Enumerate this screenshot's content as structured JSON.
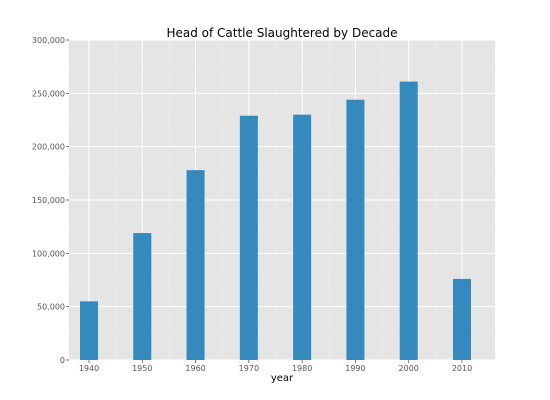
{
  "chart_data": {
    "type": "bar",
    "title": "Head of Cattle Slaughtered by Decade",
    "xlabel": "year",
    "ylabel": "",
    "categories": [
      "1940",
      "1950",
      "1960",
      "1970",
      "1980",
      "1990",
      "2000",
      "2010"
    ],
    "values": [
      55000,
      119000,
      178000,
      229000,
      230000,
      244000,
      261000,
      76000
    ],
    "ylim": [
      0,
      300000
    ],
    "yticks": [
      0,
      50000,
      100000,
      150000,
      200000,
      250000,
      300000
    ],
    "ytick_labels": [
      "0",
      "50,000",
      "100,000",
      "150,000",
      "200,000",
      "250,000",
      "300,000"
    ],
    "grid": true,
    "colors": {
      "bar": "#348ABD",
      "panel_background": "#E5E5E5",
      "grid_major": "#FFFFFF",
      "grid_minor": "#EBEBEB",
      "tick_label": "#555555"
    }
  }
}
